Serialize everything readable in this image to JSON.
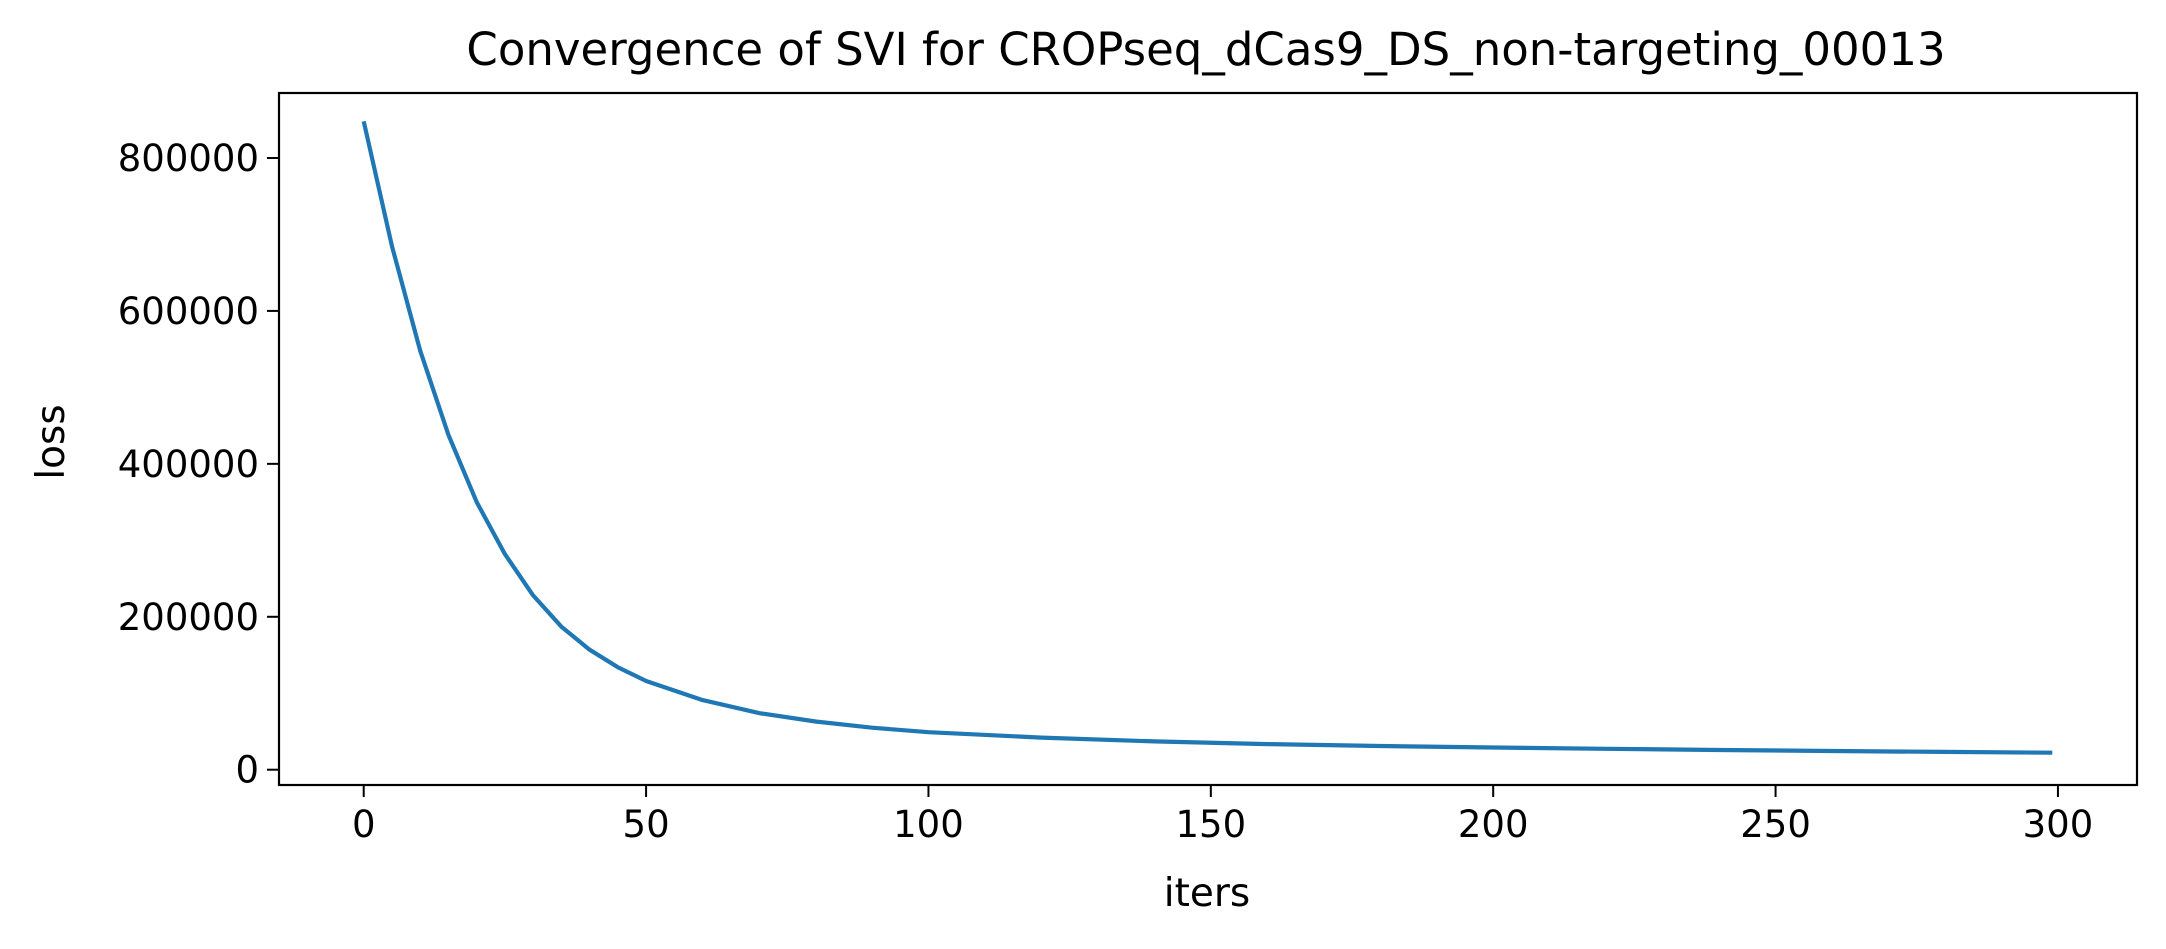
{
  "chart_data": {
    "type": "line",
    "title": "Convergence of SVI for CROPseq_dCas9_DS_non-targeting_00013",
    "xlabel": "iters",
    "ylabel": "loss",
    "xlim": [
      -15,
      314
    ],
    "ylim": [
      -20000,
      885000
    ],
    "xticks": [
      0,
      50,
      100,
      150,
      200,
      250,
      300
    ],
    "xtick_labels": [
      "0",
      "50",
      "100",
      "150",
      "200",
      "250",
      "300"
    ],
    "yticks": [
      0,
      200000,
      400000,
      600000,
      800000
    ],
    "ytick_labels": [
      "0",
      "200000",
      "400000",
      "600000",
      "800000"
    ],
    "grid": false,
    "legend": "none",
    "series": [
      {
        "color": "#1f77b4",
        "x": [
          0,
          5,
          10,
          15,
          20,
          25,
          30,
          35,
          40,
          45,
          50,
          60,
          70,
          80,
          90,
          100,
          120,
          140,
          160,
          180,
          200,
          220,
          240,
          260,
          280,
          299
        ],
        "values": [
          848000,
          685000,
          548000,
          438000,
          350000,
          282000,
          228000,
          187000,
          157000,
          134000,
          116000,
          91000,
          74000,
          63000,
          55000,
          49000,
          42000,
          37000,
          33500,
          31000,
          29000,
          27300,
          25800,
          24500,
          23300,
          22200
        ]
      }
    ]
  }
}
